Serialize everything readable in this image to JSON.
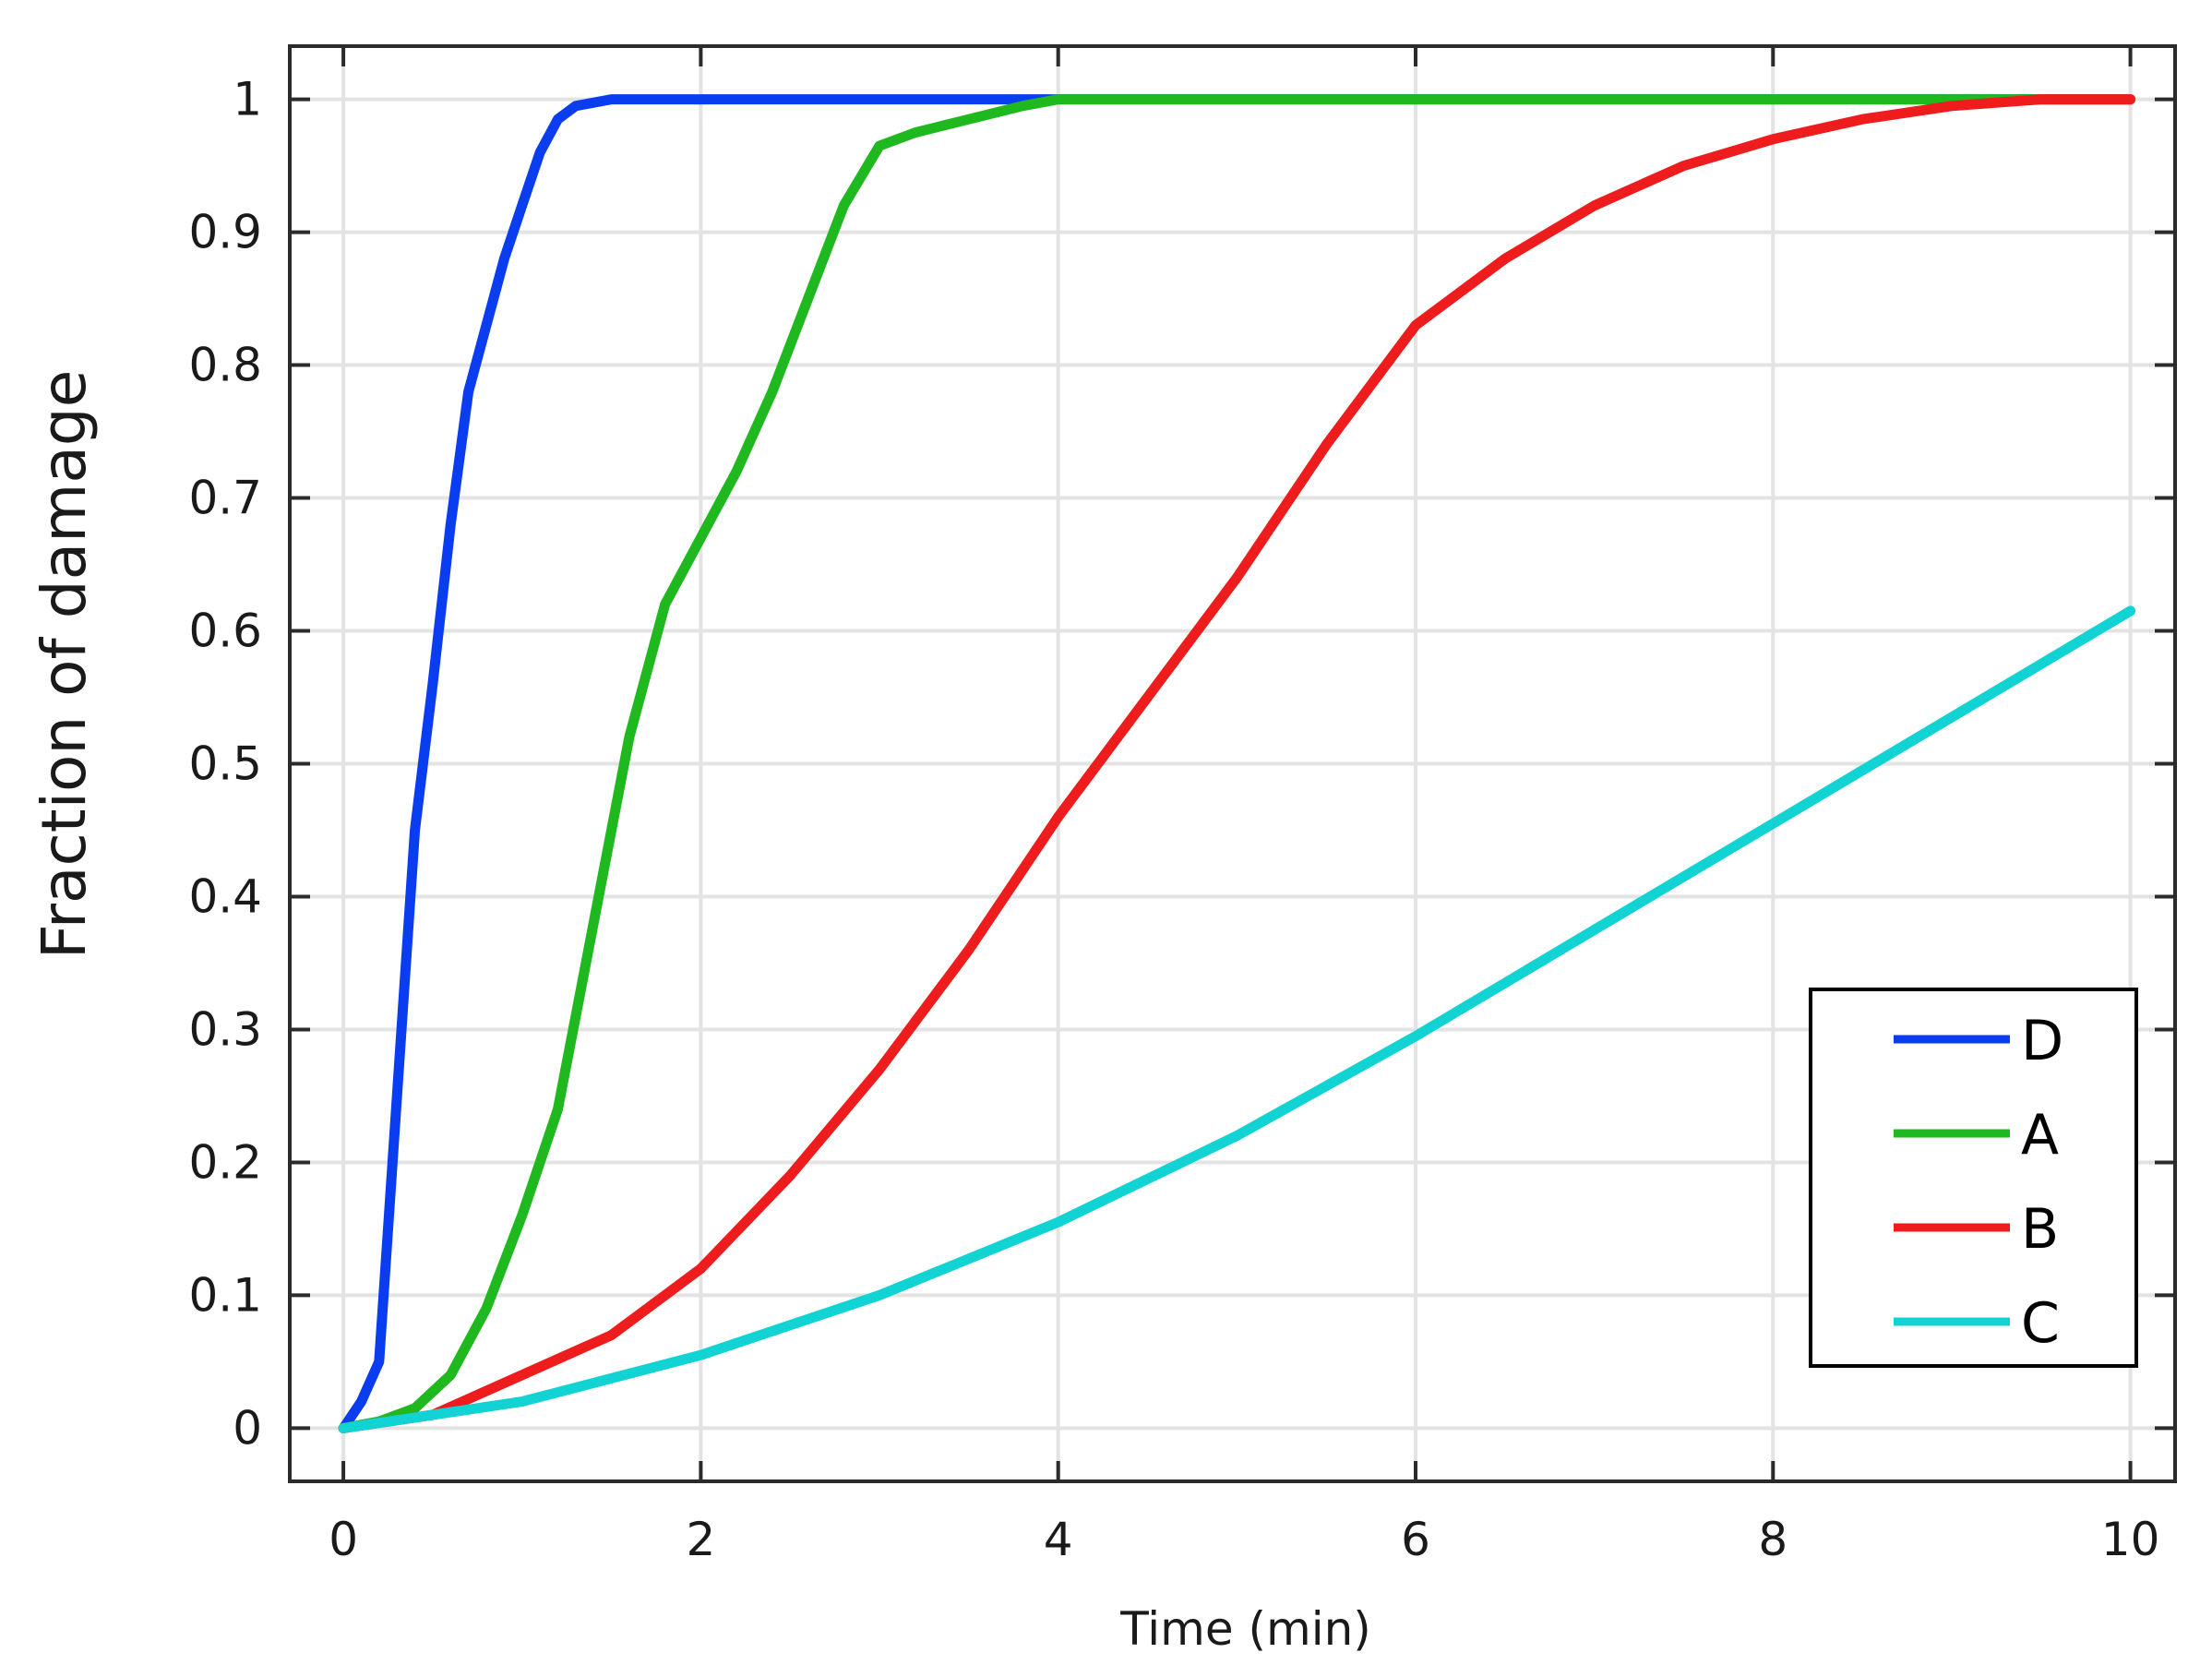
{
  "chart_data": {
    "type": "line",
    "title": "",
    "xlabel": "Time (min)",
    "ylabel": "Fraction of damage",
    "xlim": [
      -0.3,
      10.25
    ],
    "ylim": [
      -0.04,
      1.04
    ],
    "xticks": [
      0,
      2,
      4,
      6,
      8,
      10
    ],
    "yticks": [
      0,
      0.1,
      0.2,
      0.3,
      0.4,
      0.5,
      0.6,
      0.7,
      0.8,
      0.9,
      1
    ],
    "xtick_labels": [
      "0",
      "2",
      "4",
      "6",
      "8",
      "10"
    ],
    "ytick_labels": [
      "0",
      "0.1",
      "0.2",
      "0.3",
      "0.4",
      "0.5",
      "0.6",
      "0.7",
      "0.8",
      "0.9",
      "1"
    ],
    "grid": true,
    "legend_position": "bottom-right",
    "series": [
      {
        "name": "D",
        "color": "#0a3cf0",
        "x": [
          0,
          0.1,
          0.2,
          0.3,
          0.4,
          0.5,
          0.6,
          0.7,
          0.8,
          0.9,
          1.0,
          1.1,
          1.2,
          1.3,
          1.5,
          2,
          3,
          4,
          10
        ],
        "y": [
          0,
          0.02,
          0.05,
          0.25,
          0.45,
          0.56,
          0.68,
          0.78,
          0.83,
          0.88,
          0.92,
          0.96,
          0.985,
          0.995,
          1,
          1,
          1,
          1,
          1
        ]
      },
      {
        "name": "A",
        "color": "#1fb81f",
        "x": [
          0,
          0.2,
          0.4,
          0.6,
          0.8,
          1.0,
          1.2,
          1.4,
          1.6,
          1.8,
          2.0,
          2.2,
          2.4,
          2.6,
          2.8,
          3.0,
          3.2,
          3.5,
          3.8,
          4.0,
          5,
          6,
          7,
          8,
          9,
          10
        ],
        "y": [
          0,
          0.005,
          0.015,
          0.04,
          0.09,
          0.16,
          0.24,
          0.38,
          0.52,
          0.62,
          0.67,
          0.72,
          0.78,
          0.85,
          0.92,
          0.965,
          0.975,
          0.985,
          0.995,
          1,
          1,
          1,
          1,
          1,
          1,
          1
        ]
      },
      {
        "name": "B",
        "color": "#ee1c1c",
        "x": [
          0,
          0.5,
          1.0,
          1.5,
          2.0,
          2.5,
          3.0,
          3.5,
          4.0,
          4.5,
          5.0,
          5.5,
          6.0,
          6.5,
          7.0,
          7.5,
          8.0,
          8.5,
          9.0,
          9.5,
          10
        ],
        "y": [
          0,
          0.01,
          0.04,
          0.07,
          0.12,
          0.19,
          0.27,
          0.36,
          0.46,
          0.55,
          0.64,
          0.74,
          0.83,
          0.88,
          0.92,
          0.95,
          0.97,
          0.985,
          0.995,
          1,
          1
        ]
      },
      {
        "name": "C",
        "color": "#12d3d3",
        "x": [
          0,
          1,
          2,
          3,
          4,
          5,
          6,
          7,
          8,
          9,
          10
        ],
        "y": [
          0,
          0.02,
          0.055,
          0.1,
          0.155,
          0.22,
          0.295,
          0.375,
          0.455,
          0.535,
          0.615
        ]
      }
    ]
  }
}
